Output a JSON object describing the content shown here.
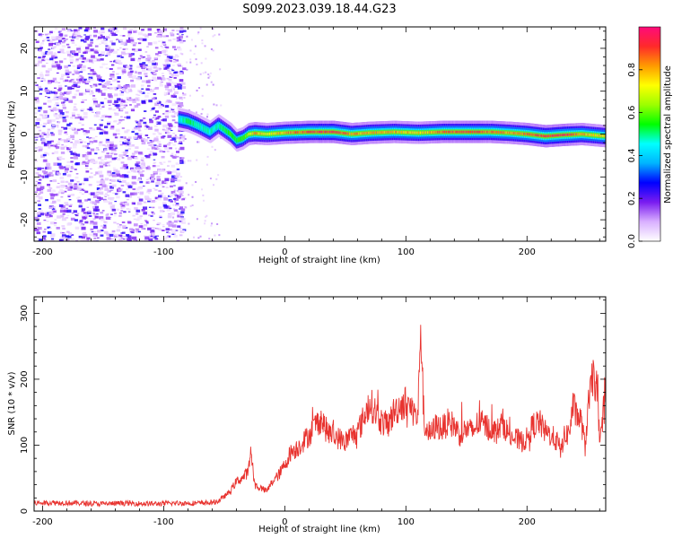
{
  "title": "S099.2023.039.18.44.G23",
  "chart_data": [
    {
      "type": "heatmap",
      "xlabel": "Height of straight line (km)",
      "ylabel": "Frequency (Hz)",
      "xlim": [
        -207,
        265
      ],
      "ylim": [
        -25,
        25
      ],
      "x_ticks": [
        -200,
        -100,
        0,
        100,
        200
      ],
      "y_ticks": [
        -20,
        -10,
        0,
        10,
        20
      ],
      "colorbar": {
        "label": "Normalized spectral amplitude",
        "range": [
          0.0,
          1.0
        ],
        "ticks": [
          0.0,
          0.2,
          0.4,
          0.6,
          0.8
        ],
        "colors": [
          "#ffffff",
          "#d9b0ff",
          "#7a1cf0",
          "#0000ff",
          "#00b4ff",
          "#00ffff",
          "#00ff00",
          "#9cff00",
          "#ffff00",
          "#ff9a00",
          "#ff2a2a",
          "#ff0a7a"
        ]
      },
      "noise_region_x": [
        -207,
        -88
      ],
      "signal_trace": {
        "x": [
          -88,
          -80,
          -72,
          -62,
          -55,
          -50,
          -45,
          -40,
          -35,
          -30,
          -25,
          -15,
          0,
          20,
          40,
          55,
          70,
          90,
          110,
          130,
          150,
          170,
          185,
          200,
          215,
          230,
          245,
          265
        ],
        "freq": [
          3.5,
          3.0,
          2.0,
          0.5,
          2.0,
          1.0,
          0.0,
          -1.5,
          -1.0,
          0.0,
          0.2,
          0.0,
          0.3,
          0.5,
          0.5,
          0.0,
          0.3,
          0.5,
          0.3,
          0.5,
          0.5,
          0.5,
          0.3,
          0.0,
          -0.5,
          -0.2,
          0.0,
          -0.5
        ],
        "peak": [
          0.45,
          0.55,
          0.5,
          0.5,
          0.5,
          0.55,
          0.6,
          0.55,
          0.6,
          0.7,
          0.85,
          0.75,
          0.85,
          0.95,
          0.98,
          0.85,
          0.85,
          0.85,
          0.8,
          0.9,
          0.95,
          0.9,
          0.85,
          0.9,
          0.95,
          0.98,
          0.85,
          0.8
        ]
      }
    },
    {
      "type": "line",
      "xlabel": "Height of straight line (km)",
      "ylabel": "SNR (10 * v/v)",
      "xlim": [
        -207,
        265
      ],
      "ylim": [
        0,
        325
      ],
      "x_ticks": [
        -200,
        -100,
        0,
        100,
        200
      ],
      "y_ticks": [
        0,
        100,
        200,
        300
      ],
      "color": "#e8332f",
      "series": [
        {
          "x": [
            -207,
            -190,
            -170,
            -150,
            -130,
            -110,
            -90,
            -70,
            -60,
            -55,
            -50,
            -45,
            -40,
            -35,
            -30,
            -28,
            -25,
            -20,
            -15,
            -10,
            -5,
            0,
            5,
            10,
            15,
            20,
            25,
            30,
            35,
            40,
            45,
            50,
            55,
            60,
            65,
            70,
            75,
            80,
            85,
            90,
            95,
            100,
            105,
            110,
            112,
            115,
            120,
            125,
            130,
            135,
            140,
            145,
            150,
            155,
            160,
            165,
            170,
            175,
            180,
            185,
            190,
            195,
            200,
            205,
            210,
            215,
            220,
            225,
            228,
            230,
            235,
            238,
            240,
            245,
            248,
            250,
            255,
            258,
            260,
            265
          ],
          "y": [
            12,
            13,
            12,
            11,
            12,
            11,
            12,
            12,
            13,
            15,
            22,
            30,
            45,
            50,
            60,
            95,
            40,
            35,
            30,
            45,
            55,
            70,
            90,
            95,
            105,
            115,
            130,
            140,
            120,
            115,
            110,
            105,
            115,
            120,
            140,
            165,
            150,
            135,
            130,
            150,
            160,
            165,
            155,
            140,
            290,
            135,
            115,
            130,
            125,
            135,
            130,
            115,
            125,
            120,
            135,
            130,
            125,
            120,
            135,
            115,
            110,
            105,
            110,
            130,
            135,
            120,
            115,
            105,
            90,
            110,
            120,
            160,
            150,
            135,
            95,
            150,
            210,
            180,
            90,
            200
          ]
        }
      ]
    }
  ]
}
